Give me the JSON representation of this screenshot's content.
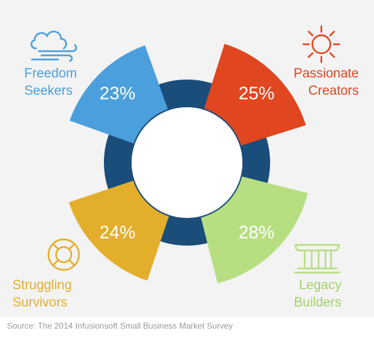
{
  "chart_data": {
    "type": "pie",
    "segments": [
      {
        "name": "Freedom Seekers",
        "line1": "Freedom",
        "line2": "Seekers",
        "value": 23,
        "label": "23%",
        "color": "#4a9fdc",
        "icon": "wind-cloud-icon"
      },
      {
        "name": "Passionate Creators",
        "line1": "Passionate",
        "line2": "Creators",
        "value": 25,
        "label": "25%",
        "color": "#e0461f",
        "icon": "sun-icon"
      },
      {
        "name": "Legacy Builders",
        "line1": "Legacy",
        "line2": "Builders",
        "value": 28,
        "label": "28%",
        "color": "#b7df82",
        "icon": "column-icon"
      },
      {
        "name": "Struggling Survivors",
        "line1": "Struggling",
        "line2": "Survivors",
        "value": 24,
        "label": "24%",
        "color": "#e3ae2c",
        "icon": "life-ring-icon"
      }
    ],
    "ring_color": "#1b4d7a",
    "source": "Source: The 2014 Infusionsoft Small Business Market Survey"
  }
}
